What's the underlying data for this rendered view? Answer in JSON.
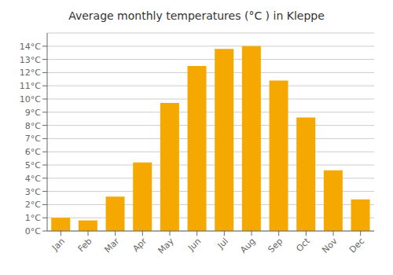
{
  "chart_data": {
    "type": "bar",
    "title": "Average monthly temperatures (°C ) in Kleppe",
    "categories": [
      "Jan",
      "Feb",
      "Mar",
      "Apr",
      "May",
      "Jun",
      "Jul",
      "Aug",
      "Sep",
      "Oct",
      "Nov",
      "Dec"
    ],
    "values": [
      1.0,
      0.8,
      2.6,
      5.2,
      9.7,
      12.5,
      13.8,
      14.0,
      11.4,
      8.6,
      4.6,
      2.4
    ],
    "color": "#F5A800",
    "ylim": [
      0,
      15
    ],
    "yticks": [
      {
        "value": 0,
        "label": "0°C"
      },
      {
        "value": 1,
        "label": "1°C"
      },
      {
        "value": 2,
        "label": "2°C"
      },
      {
        "value": 3,
        "label": "3°C"
      },
      {
        "value": 4,
        "label": "4°C"
      },
      {
        "value": 5,
        "label": "5°C"
      },
      {
        "value": 6,
        "label": "6°C"
      },
      {
        "value": 7,
        "label": "7°C"
      },
      {
        "value": 8,
        "label": "8°C"
      },
      {
        "value": 9,
        "label": "9°C"
      },
      {
        "value": 10,
        "label": "10°C"
      },
      {
        "value": 11,
        "label": "11°C"
      },
      {
        "value": 12,
        "label": "12°C"
      },
      {
        "value": 13,
        "label": "13°C"
      },
      {
        "value": 14,
        "label": "14°C"
      }
    ],
    "grid": true
  }
}
